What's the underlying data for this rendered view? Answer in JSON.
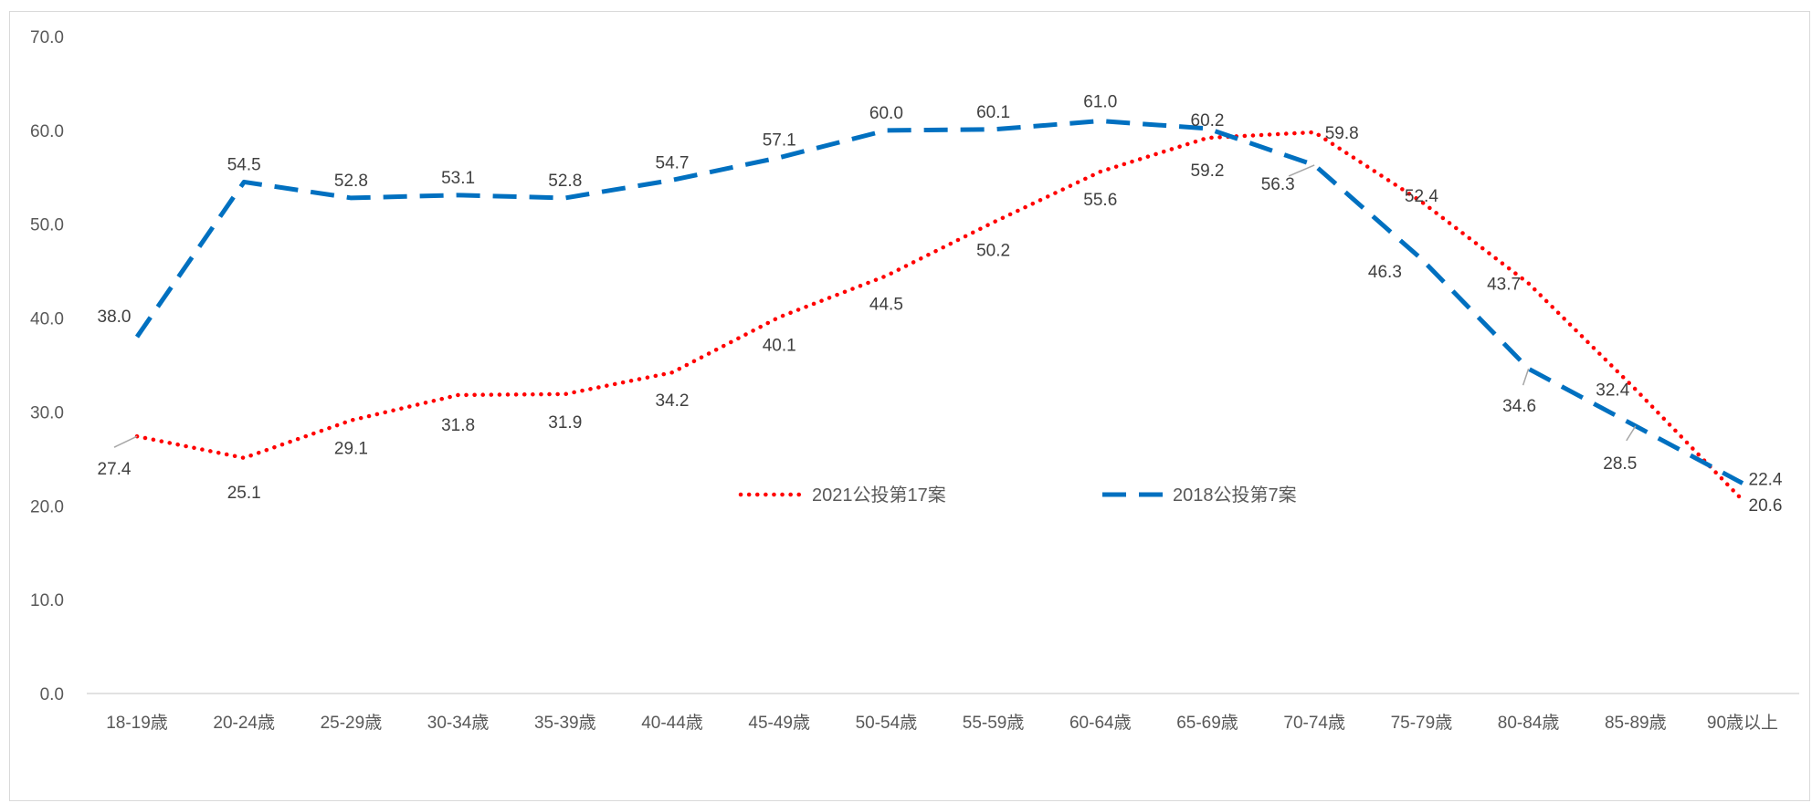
{
  "chart_data": {
    "type": "line",
    "title": "",
    "xlabel": "",
    "ylabel": "",
    "categories": [
      "18-19歳",
      "20-24歳",
      "25-29歳",
      "30-34歳",
      "35-39歳",
      "40-44歳",
      "45-49歳",
      "50-54歳",
      "55-59歳",
      "60-64歳",
      "65-69歳",
      "70-74歳",
      "75-79歳",
      "80-84歳",
      "85-89歳",
      "90歳以上"
    ],
    "ylim": [
      0,
      70
    ],
    "yticks": [
      "0.0",
      "10.0",
      "20.0",
      "30.0",
      "40.0",
      "50.0",
      "60.0",
      "70.0"
    ],
    "grid": false,
    "legend_position": "center",
    "series": [
      {
        "name": "2021公投第17案",
        "color": "#ff0000",
        "line_style": "dotted",
        "values": [
          27.4,
          25.1,
          29.1,
          31.8,
          31.9,
          34.2,
          40.1,
          44.5,
          50.2,
          55.6,
          59.2,
          59.8,
          52.4,
          43.7,
          32.4,
          20.6
        ],
        "labels": [
          "27.4",
          "25.1",
          "29.1",
          "31.8",
          "31.9",
          "34.2",
          "40.1",
          "44.5",
          "50.2",
          "55.6",
          "59.2",
          "59.8",
          "52.4",
          "43.7",
          "32.4",
          "20.6"
        ]
      },
      {
        "name": "2018公投第7案",
        "color": "#0070c0",
        "line_style": "dashed",
        "values": [
          38.0,
          54.5,
          52.8,
          53.1,
          52.8,
          54.7,
          57.1,
          60.0,
          60.1,
          61.0,
          60.2,
          56.3,
          46.3,
          34.6,
          28.5,
          22.4
        ],
        "labels": [
          "38.0",
          "54.5",
          "52.8",
          "53.1",
          "52.8",
          "54.7",
          "57.1",
          "60.0",
          "60.1",
          "61.0",
          "60.2",
          "56.3",
          "46.3",
          "34.6",
          "28.5",
          "22.4"
        ]
      }
    ]
  }
}
